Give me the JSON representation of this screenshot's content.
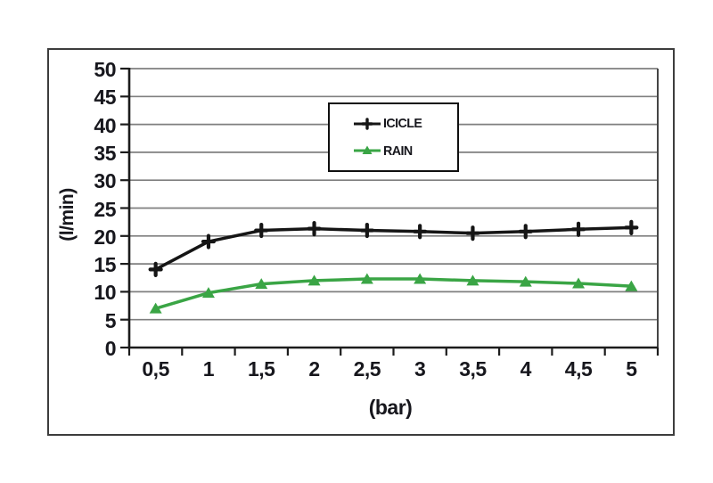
{
  "colors": {
    "text": "#17171d",
    "axis": "#1c1c1c",
    "gridline": "#7f7f7f",
    "plot_right_border": "#454545",
    "frame_border": "#3d3d3d",
    "background": "#ffffff",
    "icicle_line": "#151515",
    "rain_line": "#3aa545"
  },
  "chart_data": {
    "type": "line",
    "xlabel": "(bar)",
    "ylabel": "(l/min)",
    "categories": [
      "0,5",
      "1",
      "1,5",
      "2",
      "2,5",
      "3",
      "3,5",
      "4",
      "4,5",
      "5"
    ],
    "x_values": [
      0.5,
      1,
      1.5,
      2,
      2.5,
      3,
      3.5,
      4,
      4.5,
      5
    ],
    "y_ticks": [
      "0",
      "5",
      "10",
      "15",
      "20",
      "25",
      "30",
      "35",
      "40",
      "45",
      "50"
    ],
    "y_tick_values": [
      0,
      5,
      10,
      15,
      20,
      25,
      30,
      35,
      40,
      45,
      50
    ],
    "ylim": [
      0,
      50
    ],
    "grid": true,
    "legend_position": "top-center-inside",
    "series": [
      {
        "name": "ICICLE",
        "marker": "plus",
        "color": "#151515",
        "values": [
          14,
          19,
          21,
          21.3,
          21,
          20.8,
          20.5,
          20.8,
          21.2,
          21.5
        ]
      },
      {
        "name": "RAIN",
        "marker": "triangle-up",
        "color": "#3aa545",
        "values": [
          7,
          9.8,
          11.4,
          12,
          12.3,
          12.3,
          12,
          11.8,
          11.5,
          11
        ]
      }
    ]
  }
}
